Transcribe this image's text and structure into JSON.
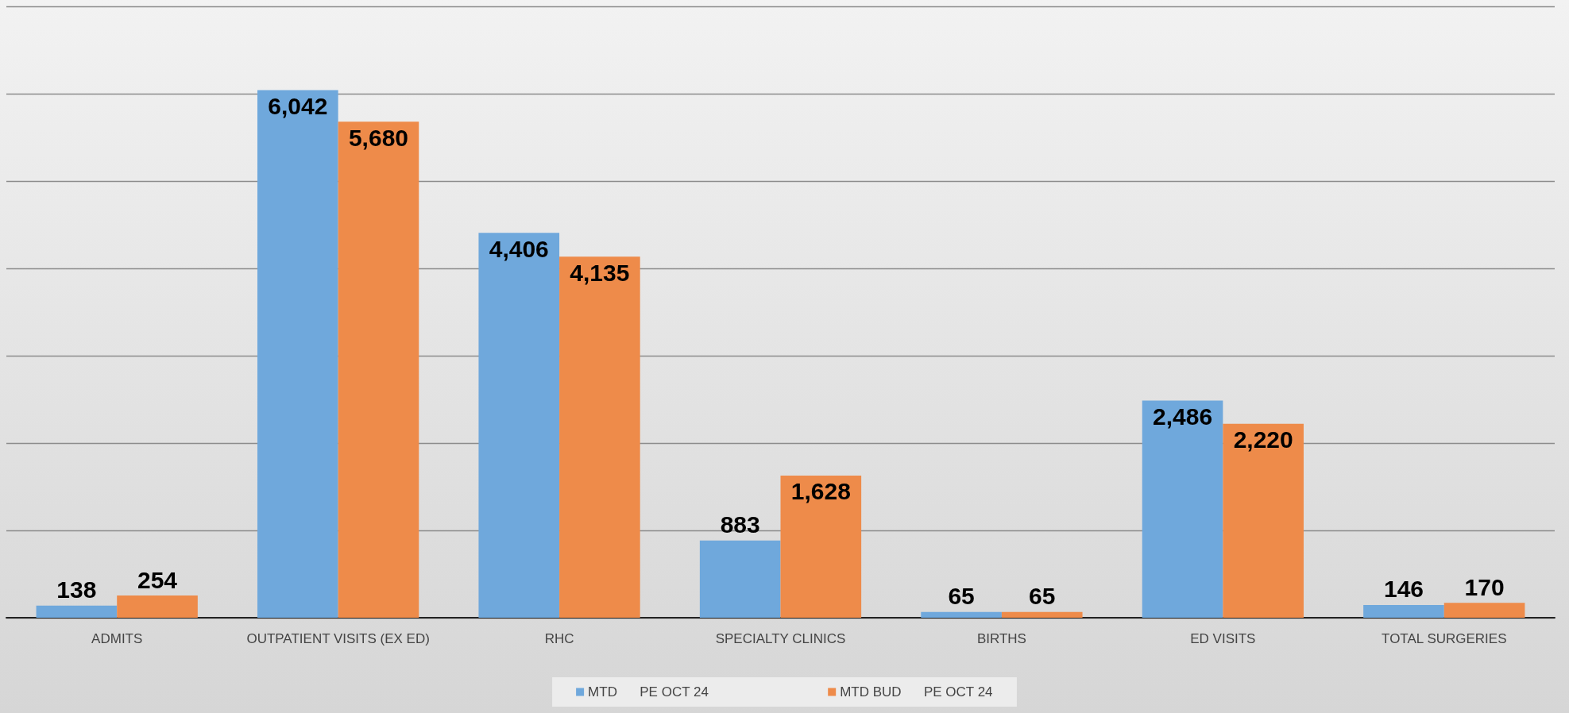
{
  "chart_data": {
    "type": "bar",
    "categories": [
      "ADMITS",
      "OUTPATIENT VISITS (EX ED)",
      "RHC",
      "SPECIALTY CLINICS",
      "BIRTHS",
      "ED VISITS",
      "TOTAL SURGERIES"
    ],
    "series": [
      {
        "name": "MTD      PE OCT 24",
        "color": "#6fa8dc",
        "values": [
          138,
          6042,
          4406,
          883,
          65,
          2486,
          146
        ],
        "value_labels": [
          "138",
          "6,042",
          "4,406",
          "883",
          "65",
          "2,486",
          "146"
        ]
      },
      {
        "name": "MTD BUD      PE OCT 24",
        "color": "#ee8b4a",
        "values": [
          254,
          5680,
          4135,
          1628,
          65,
          2220,
          170
        ],
        "value_labels": [
          "254",
          "5,680",
          "4,135",
          "1,628",
          "65",
          "2,220",
          "170"
        ]
      }
    ],
    "ylim": [
      0,
      7000
    ],
    "yticks": [
      {
        "value": 0,
        "label": null
      },
      {
        "value": 1000,
        "label": null
      },
      {
        "value": 2000,
        "label": null
      },
      {
        "value": 3000,
        "label": null
      },
      {
        "value": 4000,
        "label": null
      },
      {
        "value": 5000,
        "label": null
      },
      {
        "value": 6000,
        "label": null
      },
      {
        "value": 7000,
        "label": null
      }
    ],
    "tick_labels": "x",
    "grid": "y",
    "legend": "bottom"
  }
}
